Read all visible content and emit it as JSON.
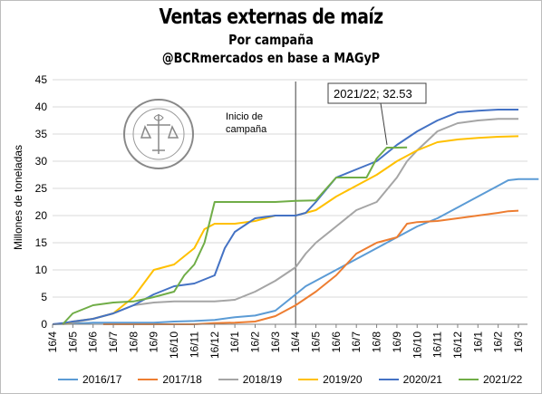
{
  "title": "Ventas externas de maíz",
  "subtitle1": "Por campaña",
  "subtitle2": "@BCRmercados en base a MAGyP",
  "logo_text": "BOLSA DE COMERCIO DE ROSARIO",
  "annotation": "Inicio de campaña",
  "annotation_lines": [
    "Inicio de",
    "campaña"
  ],
  "callout": "2021/22; 32.53",
  "chart_data": {
    "type": "line",
    "title": "Ventas externas de maíz",
    "subtitle": "Por campaña",
    "xlabel": "",
    "ylabel": "Millones de toneladas",
    "ylim": [
      0,
      45
    ],
    "yticks": [
      0,
      5,
      10,
      15,
      20,
      25,
      30,
      35,
      40,
      45
    ],
    "xticks": [
      "16/4",
      "16/5",
      "16/6",
      "16/7",
      "16/8",
      "16/9",
      "16/10",
      "16/11",
      "16/12",
      "16/1",
      "16/2",
      "16/3",
      "16/4",
      "16/5",
      "16/6",
      "16/7",
      "16/8",
      "16/9",
      "16/10",
      "16/11",
      "16/12",
      "16/1",
      "16/2",
      "16/3"
    ],
    "grid": "horizontal",
    "legend": "bottom",
    "vline": {
      "x": 12,
      "label": "Inicio de campaña"
    },
    "series": [
      {
        "name": "2016/17",
        "color": "#5B9BD5",
        "points": [
          [
            0,
            0
          ],
          [
            1,
            0.1
          ],
          [
            2,
            0.3
          ],
          [
            3,
            0.3
          ],
          [
            4,
            0.3
          ],
          [
            5,
            0.3
          ],
          [
            6,
            0.5
          ],
          [
            7,
            0.6
          ],
          [
            8,
            0.8
          ],
          [
            9,
            1.3
          ],
          [
            10,
            1.6
          ],
          [
            11,
            2.5
          ],
          [
            12,
            5.5
          ],
          [
            12.5,
            7
          ],
          [
            13,
            8
          ],
          [
            14,
            10
          ],
          [
            15,
            12
          ],
          [
            16,
            14
          ],
          [
            17,
            16
          ],
          [
            18,
            18
          ],
          [
            19,
            19.5
          ],
          [
            20,
            21.5
          ],
          [
            21,
            23.5
          ],
          [
            22,
            25.5
          ],
          [
            22.5,
            26.5
          ],
          [
            23,
            26.7
          ],
          [
            24,
            26.7
          ]
        ]
      },
      {
        "name": "2017/18",
        "color": "#ED7D31",
        "points": [
          [
            2.5,
            0
          ],
          [
            6,
            0
          ],
          [
            7,
            0
          ],
          [
            8,
            0.2
          ],
          [
            9,
            0.3
          ],
          [
            10,
            0.5
          ],
          [
            11,
            1.5
          ],
          [
            12,
            3.5
          ],
          [
            13,
            6
          ],
          [
            13.5,
            7.5
          ],
          [
            14,
            9
          ],
          [
            14.5,
            11
          ],
          [
            15,
            13
          ],
          [
            16,
            15
          ],
          [
            17,
            16
          ],
          [
            17.5,
            18.5
          ],
          [
            18,
            18.8
          ],
          [
            19,
            19
          ],
          [
            20,
            19.5
          ],
          [
            21,
            20
          ],
          [
            22,
            20.5
          ],
          [
            22.5,
            20.8
          ],
          [
            23,
            20.9
          ]
        ]
      },
      {
        "name": "2018/19",
        "color": "#A5A5A5",
        "points": [
          [
            0,
            0
          ],
          [
            1,
            0.3
          ],
          [
            2,
            1
          ],
          [
            3,
            2
          ],
          [
            4,
            3.5
          ],
          [
            5,
            4
          ],
          [
            6,
            4.2
          ],
          [
            7,
            4.2
          ],
          [
            8,
            4.2
          ],
          [
            9,
            4.5
          ],
          [
            10,
            6
          ],
          [
            11,
            8
          ],
          [
            12,
            10.5
          ],
          [
            12.5,
            13
          ],
          [
            13,
            15
          ],
          [
            14,
            18
          ],
          [
            15,
            21
          ],
          [
            16,
            22.5
          ],
          [
            17,
            27
          ],
          [
            17.5,
            30
          ],
          [
            18,
            32
          ],
          [
            19,
            35.5
          ],
          [
            20,
            37
          ],
          [
            21,
            37.5
          ],
          [
            22,
            37.8
          ],
          [
            23,
            37.8
          ]
        ]
      },
      {
        "name": "2019/20",
        "color": "#FFC000",
        "points": [
          [
            0.5,
            0
          ],
          [
            1,
            0.5
          ],
          [
            2,
            1
          ],
          [
            3,
            2
          ],
          [
            4,
            5
          ],
          [
            5,
            10
          ],
          [
            5.5,
            10.5
          ],
          [
            6,
            11
          ],
          [
            7,
            14
          ],
          [
            7.5,
            17.5
          ],
          [
            8,
            18.5
          ],
          [
            9,
            18.5
          ],
          [
            10,
            19
          ],
          [
            11,
            20
          ],
          [
            12,
            20
          ],
          [
            13,
            21
          ],
          [
            14,
            23.5
          ],
          [
            15,
            25.5
          ],
          [
            16,
            27.5
          ],
          [
            17,
            30
          ],
          [
            18,
            32
          ],
          [
            19,
            33.5
          ],
          [
            20,
            34
          ],
          [
            21,
            34.3
          ],
          [
            22,
            34.5
          ],
          [
            23,
            34.6
          ]
        ]
      },
      {
        "name": "2020/21",
        "color": "#4472C4",
        "points": [
          [
            0,
            0
          ],
          [
            0.5,
            0.2
          ],
          [
            1,
            0.5
          ],
          [
            2,
            1
          ],
          [
            3,
            2
          ],
          [
            4,
            3.5
          ],
          [
            5,
            5.5
          ],
          [
            6,
            7
          ],
          [
            7,
            7.5
          ],
          [
            8,
            9
          ],
          [
            8.5,
            14
          ],
          [
            9,
            17
          ],
          [
            10,
            19.5
          ],
          [
            11,
            20
          ],
          [
            12,
            20
          ],
          [
            12.5,
            20.5
          ],
          [
            13,
            22.5
          ],
          [
            14,
            27
          ],
          [
            15,
            28.5
          ],
          [
            16,
            30
          ],
          [
            17,
            33
          ],
          [
            18,
            35.5
          ],
          [
            19,
            37.5
          ],
          [
            20,
            39
          ],
          [
            21,
            39.3
          ],
          [
            22,
            39.5
          ],
          [
            23,
            39.5
          ]
        ]
      },
      {
        "name": "2021/22",
        "color": "#70AD47",
        "points": [
          [
            0.5,
            0
          ],
          [
            1,
            2
          ],
          [
            2,
            3.5
          ],
          [
            3,
            4
          ],
          [
            4,
            4.2
          ],
          [
            5,
            5
          ],
          [
            6,
            6
          ],
          [
            6.5,
            9
          ],
          [
            7,
            11
          ],
          [
            7.5,
            15
          ],
          [
            8,
            22.5
          ],
          [
            9,
            22.5
          ],
          [
            10,
            22.5
          ],
          [
            11,
            22.5
          ],
          [
            12,
            22.7
          ],
          [
            13,
            22.8
          ],
          [
            14,
            27
          ],
          [
            15,
            27
          ],
          [
            15.5,
            27
          ],
          [
            16,
            30.5
          ],
          [
            16.5,
            32.5
          ],
          [
            17,
            32.5
          ],
          [
            17.5,
            32.53
          ]
        ]
      }
    ]
  },
  "legend_items": [
    "2016/17",
    "2017/18",
    "2018/19",
    "2019/20",
    "2020/21",
    "2021/22"
  ],
  "colors": {
    "2016/17": "#5B9BD5",
    "2017/18": "#ED7D31",
    "2018/19": "#A5A5A5",
    "2019/20": "#FFC000",
    "2020/21": "#4472C4",
    "2021/22": "#70AD47"
  }
}
